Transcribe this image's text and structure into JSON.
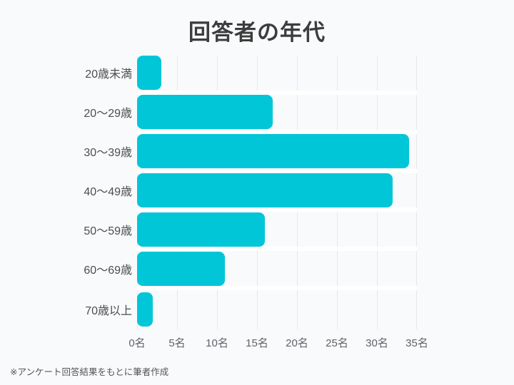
{
  "title": "回答者の年代",
  "footer_note": "※アンケート回答結果をもとに筆者作成",
  "colors": {
    "background": "#F9FAFC",
    "bar": "#00C6D8",
    "gridline": "#E5E8EC",
    "row_separator": "#FFFFFF",
    "title_text": "#3D3D3D",
    "category_text": "#4D4D4D",
    "tick_text": "#5F6368",
    "footer_text": "#555555"
  },
  "chart_data": {
    "type": "bar",
    "orientation": "horizontal",
    "title": "回答者の年代",
    "categories": [
      "20歳未満",
      "20〜29歳",
      "30〜39歳",
      "40〜49歳",
      "50〜59歳",
      "60〜69歳",
      "70歳以上"
    ],
    "values": [
      3,
      17,
      34,
      32,
      16,
      11,
      2
    ],
    "unit": "名",
    "xlabel": "",
    "ylabel": "",
    "xlim": [
      0,
      35
    ],
    "x_tick_labels": [
      "0名",
      "5名",
      "10名",
      "15名",
      "20名",
      "25名",
      "30名",
      "35名"
    ],
    "grid": "vertical-only",
    "legend": "none",
    "note": "※アンケート回答結果をもとに筆者作成"
  }
}
